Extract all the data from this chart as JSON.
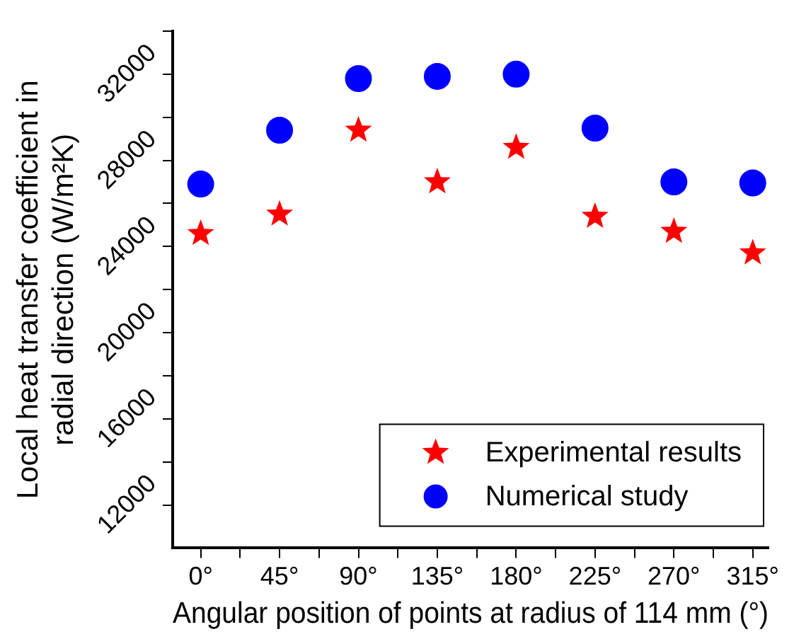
{
  "chart_data": {
    "type": "scatter",
    "xlabel": "Angular position of points at radius of 114 mm (°)",
    "ylabel": "Local heat transfer coefficient in\nradial direction (W/m²K)",
    "x": [
      0,
      45,
      90,
      135,
      180,
      225,
      270,
      315
    ],
    "series": [
      {
        "name": "Experimental results",
        "color": "#ff0000",
        "marker": "star",
        "values": [
          24600,
          25500,
          29400,
          27000,
          28600,
          25400,
          24700,
          23700
        ]
      },
      {
        "name": "Numerical study",
        "color": "#0000ff",
        "marker": "circle",
        "values": [
          26900,
          29400,
          31800,
          31900,
          32000,
          29500,
          27000,
          26950
        ]
      }
    ],
    "xlim": [
      -16,
      324
    ],
    "xticks": [
      {
        "value": 0,
        "label": "0°"
      },
      {
        "value": 22.5,
        "label": null
      },
      {
        "value": 45,
        "label": "45°"
      },
      {
        "value": 67.5,
        "label": null
      },
      {
        "value": 90,
        "label": "90°"
      },
      {
        "value": 112.5,
        "label": null
      },
      {
        "value": 135,
        "label": "135°"
      },
      {
        "value": 157.5,
        "label": null
      },
      {
        "value": 180,
        "label": "180°"
      },
      {
        "value": 202.5,
        "label": null
      },
      {
        "value": 225,
        "label": "225°"
      },
      {
        "value": 247.5,
        "label": null
      },
      {
        "value": 270,
        "label": "270°"
      },
      {
        "value": 292.5,
        "label": null
      },
      {
        "value": 315,
        "label": "315°"
      }
    ],
    "ylim": [
      10000,
      34000
    ],
    "yticks": [
      12000,
      {
        "value": 14000,
        "label": null
      },
      16000,
      {
        "value": 18000,
        "label": null
      },
      20000,
      {
        "value": 22000,
        "label": null
      },
      24000,
      {
        "value": 26000,
        "label": null
      },
      28000,
      {
        "value": 30000,
        "label": null
      },
      32000,
      {
        "value": 34000,
        "label": null
      }
    ],
    "grid": false,
    "legend": "bottom right"
  }
}
